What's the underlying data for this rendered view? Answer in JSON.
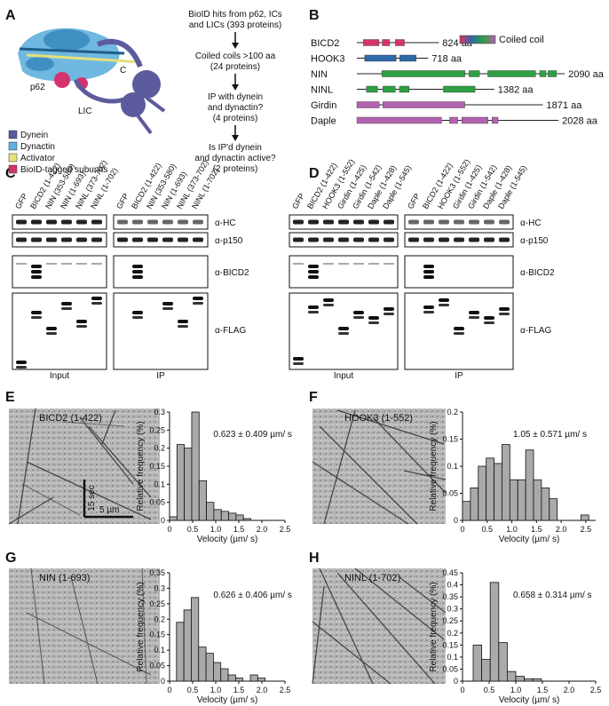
{
  "panels": {
    "A": "A",
    "B": "B",
    "C": "C",
    "D": "D",
    "E": "E",
    "F": "F",
    "G": "G",
    "H": "H"
  },
  "panelA": {
    "labels": {
      "p62": "p62",
      "lic": "LIC",
      "c": "C"
    },
    "legend": [
      {
        "label": "Dynein",
        "color": "#5b5b9e"
      },
      {
        "label": "Dynactin",
        "color": "#5fb0dc"
      },
      {
        "label": "Activator",
        "color": "#e5e07a"
      },
      {
        "label": "BioID-tagged subunits",
        "color": "#d6336c"
      }
    ],
    "flow": [
      "BioID hits from p62, ICs",
      "and LICs (393 proteins)",
      "Coiled coils >100 aa",
      "(24 proteins)",
      "IP with dynein",
      "and dynactin?",
      "(4 proteins)",
      "Is IP'd dynein",
      "and dynactin active?",
      "(2 proteins)"
    ]
  },
  "panelB": {
    "legend": "Coiled coil",
    "proteins": [
      {
        "name": "BICD2",
        "length": "824 aa",
        "color": "#d6336c",
        "aa": 824,
        "coils": [
          [
            0.08,
            0.27
          ],
          [
            0.31,
            0.4
          ],
          [
            0.47,
            0.58
          ]
        ]
      },
      {
        "name": "HOOK3",
        "length": "718 aa",
        "color": "#2f6aa8",
        "aa": 718,
        "coils": [
          [
            0.11,
            0.55
          ],
          [
            0.6,
            0.83
          ]
        ]
      },
      {
        "name": "NIN",
        "length": "2090 aa",
        "color": "#2ea043",
        "aa": 2090,
        "coils": [
          [
            0.12,
            0.52
          ],
          [
            0.54,
            0.59
          ],
          [
            0.63,
            0.86
          ],
          [
            0.88,
            0.91
          ],
          [
            0.92,
            0.96
          ]
        ]
      },
      {
        "name": "NINL",
        "length": "1382 aa",
        "color": "#2ea043",
        "aa": 1382,
        "coils": [
          [
            0.07,
            0.15
          ],
          [
            0.19,
            0.28
          ],
          [
            0.31,
            0.38
          ],
          [
            0.63,
            0.86
          ]
        ]
      },
      {
        "name": "Girdin",
        "length": "1871 aa",
        "color": "#b264b0",
        "aa": 1871,
        "coils": [
          [
            0.0,
            0.12
          ],
          [
            0.14,
            0.58
          ]
        ]
      },
      {
        "name": "Daple",
        "length": "2028 aa",
        "color": "#b264b0",
        "aa": 2028,
        "coils": [
          [
            0.0,
            0.42
          ],
          [
            0.46,
            0.5
          ],
          [
            0.52,
            0.65
          ],
          [
            0.67,
            0.7
          ]
        ]
      }
    ]
  },
  "panelC": {
    "lanes": [
      "GFP",
      "BICD2 (1-422)",
      "NIN (353-580)",
      "NIN (1-693)",
      "NINL (373-702)",
      "NINL (1-702)"
    ],
    "rows": [
      "α-HC",
      "α-p150",
      "α-BICD2",
      "α-FLAG"
    ],
    "groups": [
      "Input",
      "IP"
    ]
  },
  "panelD": {
    "lanes": [
      "GFP",
      "BICD2 (1-422)",
      "HOOK3 (1-552)",
      "Girdin (1-425)",
      "Girdin (1-542)",
      "Daple (1-428)",
      "Daple (1-545)"
    ],
    "rows": [
      "α-HC",
      "α-p150",
      "α-BICD2",
      "α-FLAG"
    ],
    "groups": [
      "Input",
      "IP"
    ]
  },
  "scale": {
    "time": "15 sec",
    "distance": "5 µm"
  },
  "histograms": [
    {
      "panel": "E",
      "title": "BICD2 (1-422)",
      "stat": "0.623 ± 0.409 µm/ s",
      "xlabel": "Velocity (µm/ s)",
      "ylabel": "Relative frequency (%)",
      "xlim": [
        0,
        2.5
      ],
      "ylim": [
        0,
        0.3
      ],
      "xticks": [
        "0",
        "0.5",
        "1.0",
        "1.5",
        "2.0",
        "2.5"
      ],
      "yticks": [
        "0",
        "0.05",
        "0.1",
        "0.15",
        "0.2",
        "0.25",
        "0.3"
      ],
      "bins_start": 0,
      "bin_width": 0.16,
      "values": [
        0.01,
        0.21,
        0.2,
        0.3,
        0.11,
        0.05,
        0.03,
        0.025,
        0.02,
        0.015,
        0.005
      ]
    },
    {
      "panel": "F",
      "title": "HOOK3 (1-552)",
      "stat": "1.05 ± 0.571 µm/ s",
      "xlabel": "Velocity (µm/ s)",
      "ylabel": "Relative frequency (%)",
      "xlim": [
        0,
        2.7
      ],
      "ylim": [
        0,
        0.2
      ],
      "xticks": [
        "0",
        "0.5",
        "1.0",
        "1.5",
        "2.0",
        "2.5"
      ],
      "yticks": [
        "0",
        "0.05",
        "0.1",
        "0.15",
        "0.2"
      ],
      "bins_start": 0,
      "bin_width": 0.16,
      "values": [
        0.035,
        0.06,
        0.1,
        0.115,
        0.105,
        0.14,
        0.075,
        0.075,
        0.13,
        0.075,
        0.06,
        0.04,
        0.0,
        0.0,
        0.0,
        0.01
      ]
    },
    {
      "panel": "G",
      "title": "NIN (1-693)",
      "stat": "0.626 ± 0.406 µm/ s",
      "xlabel": "Velocity (µm/ s)",
      "ylabel": "Relative frequency (%)",
      "xlim": [
        0,
        2.5
      ],
      "ylim": [
        0,
        0.35
      ],
      "xticks": [
        "0",
        "0.5",
        "1.0",
        "1.5",
        "2.0",
        "2.5"
      ],
      "yticks": [
        "0",
        "0.05",
        "0.1",
        "0.15",
        "0.2",
        "0.25",
        "0.3",
        "0.35"
      ],
      "bins_start": 0.15,
      "bin_width": 0.16,
      "values": [
        0.19,
        0.23,
        0.27,
        0.11,
        0.09,
        0.06,
        0.04,
        0.02,
        0.01,
        0.0,
        0.02,
        0.01
      ]
    },
    {
      "panel": "H",
      "title": "NINL (1-702)",
      "stat": "0.658 ± 0.314 µm/ s",
      "xlabel": "Velocity (µm/ s)",
      "ylabel": "Relative frequency (%)",
      "xlim": [
        0,
        2.5
      ],
      "ylim": [
        0,
        0.45
      ],
      "xticks": [
        "0",
        "0.5",
        "1.0",
        "1.5",
        "2.0",
        "2.5"
      ],
      "yticks": [
        "0",
        "0.05",
        "0.1",
        "0.15",
        "0.2",
        "0.25",
        "0.3",
        "0.35",
        "0.4",
        "0.45"
      ],
      "bins_start": 0.2,
      "bin_width": 0.16,
      "values": [
        0.15,
        0.09,
        0.41,
        0.16,
        0.04,
        0.02,
        0.01,
        0.01
      ]
    }
  ]
}
